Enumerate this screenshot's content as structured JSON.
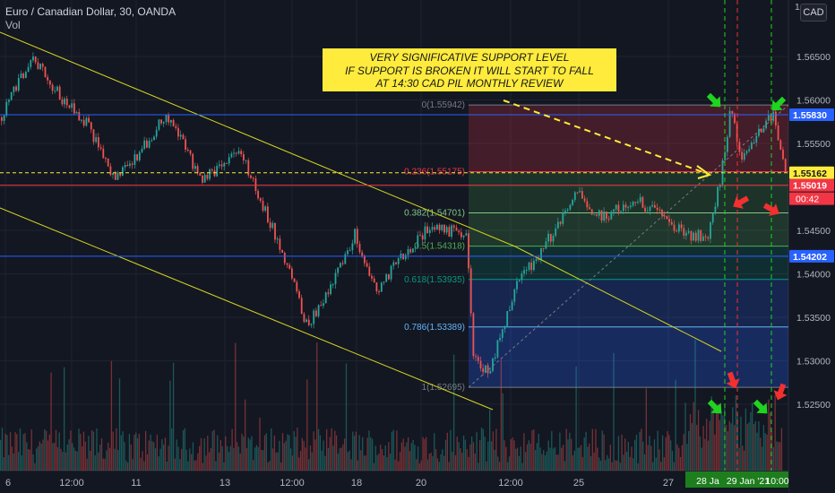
{
  "header": {
    "symbol": "Euro / Canadian Dollar, 30, OANDA",
    "vol": "Vol"
  },
  "currency_button": "CAD",
  "annotation": {
    "lines": [
      "VERY SIGNIFICATIVE SUPPORT LEVEL",
      "IF SUPPORT IS BROKEN IT WILL START TO FALL",
      "AT 14:30 CAD PIL MONTHLY REVIEW"
    ],
    "bg_color": "#ffeb3b"
  },
  "chart_data": {
    "type": "candlestick",
    "title": "Euro / Canadian Dollar, 30, OANDA",
    "ylim": [
      1.5225,
      1.5675
    ],
    "y_ticks": [
      "1.56500",
      "1.56000",
      "1.55500",
      "1.55000",
      "1.54500",
      "1.54000",
      "1.53500",
      "1.53000",
      "1.52500"
    ],
    "x_ticks": [
      "6",
      "12:00",
      "11",
      "13",
      "12:00",
      "18",
      "20",
      "12:00",
      "25",
      "27",
      "28 Ja",
      "29 Jan '21",
      "10:00"
    ],
    "price_path": [
      [
        "6",
        1.558
      ],
      [
        "6",
        1.565
      ],
      [
        "12:00",
        1.56
      ],
      [
        "12:00",
        1.5575
      ],
      [
        "11",
        1.551
      ],
      [
        "11",
        1.554
      ],
      [
        "11",
        1.5585
      ],
      [
        "13",
        1.5505
      ],
      [
        "13",
        1.5545
      ],
      [
        "13",
        1.5485
      ],
      [
        "12:00",
        1.5385
      ],
      [
        "12:00",
        1.534
      ],
      [
        "12:00",
        1.5375
      ],
      [
        "18",
        1.5445
      ],
      [
        "18",
        1.538
      ],
      [
        "18",
        1.541
      ],
      [
        "18",
        1.5455
      ],
      [
        "20",
        1.5445
      ],
      [
        "20",
        1.53
      ],
      [
        "12:00",
        1.5285
      ],
      [
        "12:00",
        1.5385
      ],
      [
        "12:00",
        1.546
      ],
      [
        "25",
        1.5495
      ],
      [
        "25",
        1.5465
      ],
      [
        "25",
        1.5485
      ],
      [
        "27",
        1.5445
      ],
      [
        "27",
        1.5445
      ],
      [
        "27",
        1.552
      ],
      [
        "28 Ja",
        1.5594
      ],
      [
        "28 Ja",
        1.5535
      ],
      [
        "29 Jan '21",
        1.5585
      ],
      [
        "10:00",
        1.5516
      ]
    ],
    "fib_levels": [
      {
        "ratio": 0,
        "label": "0(1.55942)",
        "price": 1.55942,
        "color": "#787b86"
      },
      {
        "ratio": 0.236,
        "label": "0.236(1.55175)",
        "price": 1.55175,
        "color": "#f23645"
      },
      {
        "ratio": 0.382,
        "label": "0.382(1.54701)",
        "price": 1.54701,
        "color": "#81c784"
      },
      {
        "ratio": 0.5,
        "label": "0.5(1.54318)",
        "price": 1.54318,
        "color": "#4caf50"
      },
      {
        "ratio": 0.618,
        "label": "0.618(1.53935)",
        "price": 1.53935,
        "color": "#089981"
      },
      {
        "ratio": 0.786,
        "label": "0.786(1.53389)",
        "price": 1.53389,
        "color": "#64b5f6"
      },
      {
        "ratio": 1,
        "label": "1(1.52695)",
        "price": 1.52695,
        "color": "#787b86"
      }
    ],
    "horizontal_lines": [
      {
        "price": 1.5583,
        "label": "1.55830",
        "color": "#2962ff"
      },
      {
        "price": 1.55162,
        "label": "1.55162",
        "color": "#ffeb3b",
        "dashed": true
      },
      {
        "price": 1.55019,
        "label": "1.55019",
        "color": "#f23645"
      },
      {
        "price": 1.54202,
        "label": "1.54202",
        "color": "#2962ff"
      }
    ],
    "countdown": "00:42",
    "time_highlight": [
      "28 Ja",
      "29 Jan '21",
      "10:00"
    ],
    "colors": {
      "up": "#26a69a",
      "down": "#ef5350",
      "trendline": "#d6d621",
      "arrow_up": "#1fd41f",
      "arrow_down": "#f23030"
    },
    "indicators": [
      "Vol"
    ]
  }
}
